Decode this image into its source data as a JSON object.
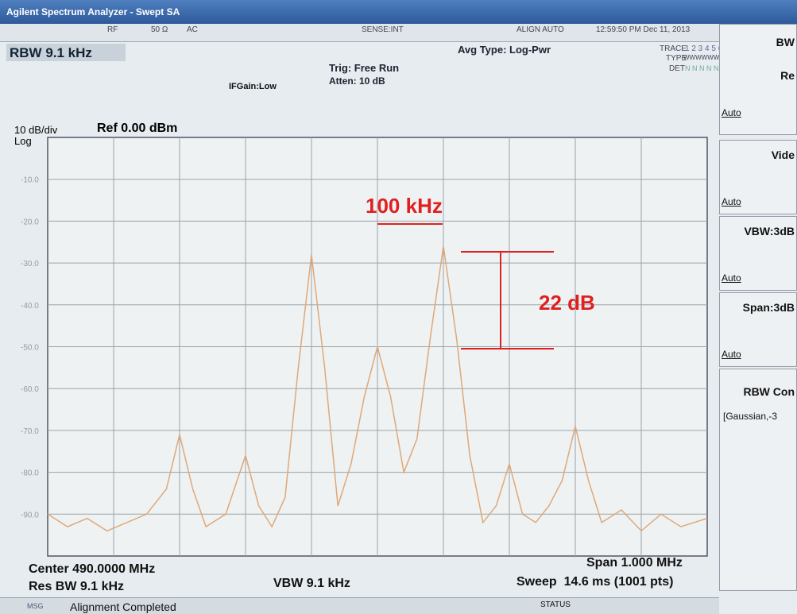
{
  "header": {
    "title": "Agilent Spectrum Analyzer - Swept SA",
    "rf": "RF",
    "impedance": "50 Ω",
    "coupling": "AC",
    "sense": "SENSE:INT",
    "align": "ALIGN AUTO",
    "datetime": "12:59:50 PM Dec 11, 2013"
  },
  "settings": {
    "rbw": "RBW  9.1 kHz",
    "avg_type": "Avg Type: Log-Pwr",
    "trig": "Trig: Free Run",
    "atten": "Atten: 10 dB",
    "ifgain": "IFGain:Low",
    "trace_label": "TRACE",
    "trace": "1 2 3 4 5 6",
    "type_label": "TYPE",
    "type": "WWWWWW",
    "det_label": "DET",
    "det": "N N N N N N"
  },
  "chart_data": {
    "type": "line",
    "scale": "10 dB/div",
    "log": "Log",
    "ref": "Ref 0.00 dBm",
    "xlim": [
      489.5,
      490.5
    ],
    "xticks": [
      489.6,
      489.7,
      489.8,
      489.9,
      490.0,
      490.1,
      490.2,
      490.3,
      490.4
    ],
    "ylim": [
      -100,
      0
    ],
    "yticks": [
      {
        "value": -10,
        "label": "-10.0"
      },
      {
        "value": -20,
        "label": "-20.0"
      },
      {
        "value": -30,
        "label": "-30.0"
      },
      {
        "value": -40,
        "label": "-40.0"
      },
      {
        "value": -50,
        "label": "-50.0"
      },
      {
        "value": -60,
        "label": "-60.0"
      },
      {
        "value": -70,
        "label": "-70.0"
      },
      {
        "value": -80,
        "label": "-80.0"
      },
      {
        "value": -90,
        "label": "-90.0"
      }
    ],
    "grid": true,
    "color": "#e0a878",
    "x": [
      489.5,
      489.53,
      489.56,
      489.59,
      489.62,
      489.65,
      489.68,
      489.7,
      489.72,
      489.74,
      489.77,
      489.8,
      489.82,
      489.84,
      489.86,
      489.88,
      489.9,
      489.92,
      489.94,
      489.96,
      489.98,
      490.0,
      490.02,
      490.04,
      490.06,
      490.08,
      490.1,
      490.12,
      490.14,
      490.16,
      490.18,
      490.2,
      490.22,
      490.24,
      490.26,
      490.28,
      490.3,
      490.32,
      490.34,
      490.37,
      490.4,
      490.43,
      490.46,
      490.5
    ],
    "values": [
      -90,
      -93,
      -91,
      -94,
      -92,
      -90,
      -84,
      -71,
      -84,
      -93,
      -90,
      -76,
      -88,
      -93,
      -86,
      -55,
      -28,
      -55,
      -88,
      -78,
      -62,
      -50,
      -62,
      -80,
      -72,
      -48,
      -26,
      -48,
      -76,
      -92,
      -88,
      -78,
      -90,
      -92,
      -88,
      -82,
      -69,
      -82,
      -92,
      -89,
      -94,
      -90,
      -93,
      -91
    ],
    "annotations": [
      "100 kHz",
      "22 dB"
    ]
  },
  "footer": {
    "center": "Center 490.0000 MHz",
    "res_bw": "Res BW 9.1 kHz",
    "vbw": "VBW 9.1 kHz",
    "span": "Span 1.000 MHz",
    "sweep": "Sweep  14.6 ms (1001 pts)",
    "msg": "MSG",
    "message": "Alignment Completed",
    "status": "STATUS"
  },
  "softkeys": [
    {
      "title": "BW",
      "sub": "Re",
      "value": "Auto"
    },
    {
      "title": "Vide",
      "value": "Auto"
    },
    {
      "title": "VBW:3dB",
      "value": "Auto"
    },
    {
      "title": "Span:3dB",
      "value": "Auto"
    },
    {
      "title": "RBW Con",
      "value": "[Gaussian,-3"
    }
  ]
}
